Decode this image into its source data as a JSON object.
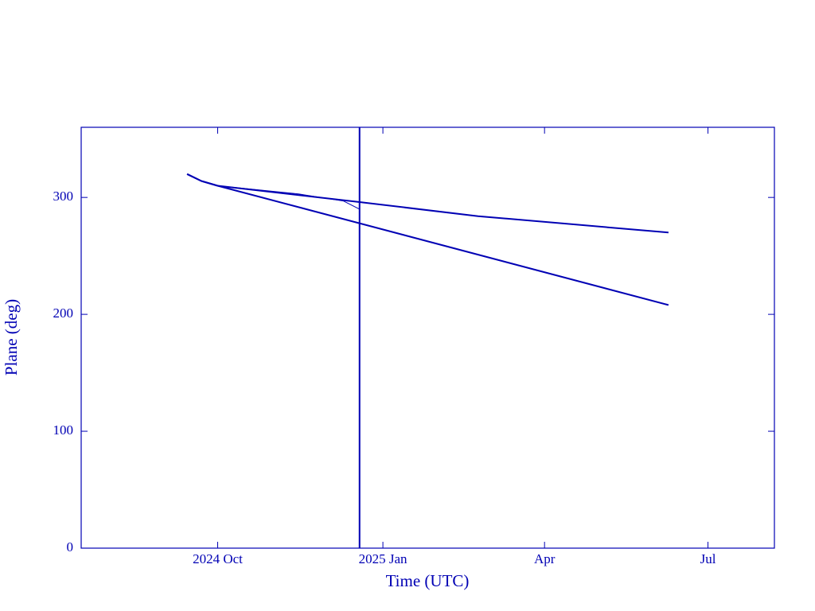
{
  "chart_data": {
    "type": "line",
    "x_label": "Time (UTC)",
    "y_label": "Plane (deg)",
    "xlim": [
      "2024-07-17",
      "2025-08-07"
    ],
    "xticks": [
      {
        "value": "2024-10-01",
        "label": "2024 Oct"
      },
      {
        "value": "2025-01-01",
        "label": "2025 Jan"
      },
      {
        "value": "2025-04-01",
        "label": "Apr"
      },
      {
        "value": "2025-07-01",
        "label": "Jul"
      }
    ],
    "ylim": [
      0,
      360
    ],
    "yticks": [
      0,
      100,
      200,
      300
    ],
    "vline_x": "2024-12-19",
    "vline_color": "#0000b4",
    "series": [
      {
        "color": "#0000b4",
        "x": [
          "2024-09-14",
          "2024-09-22",
          "2024-10-01",
          "2024-12-19",
          "2025-02-23",
          "2025-06-09"
        ],
        "values": [
          320,
          314,
          310,
          296,
          284,
          270
        ]
      },
      {
        "color": "#0000b4",
        "x": [
          "2024-09-14",
          "2024-09-22",
          "2024-10-01",
          "2025-06-09"
        ],
        "values": [
          320,
          314,
          310,
          208
        ]
      },
      {
        "color": "#0000b4",
        "x": [
          "2024-10-01",
          "2024-11-15",
          "2024-12-10",
          "2024-12-19"
        ],
        "values": [
          310,
          303,
          297,
          290
        ]
      }
    ]
  }
}
